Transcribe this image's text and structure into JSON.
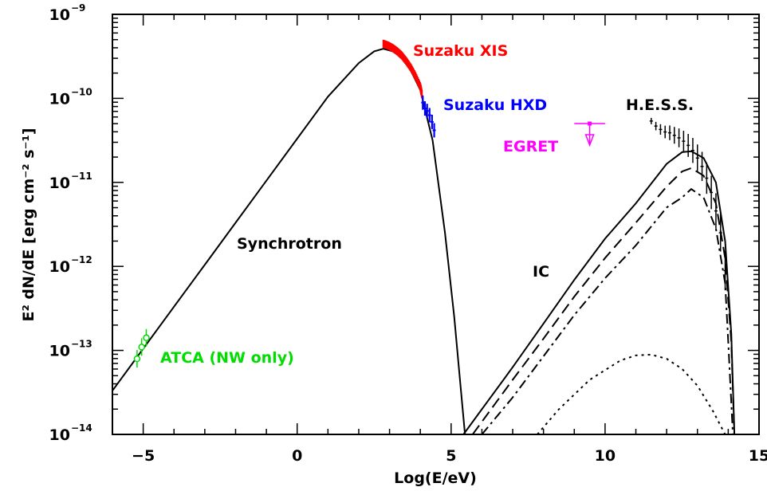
{
  "chart_data": {
    "type": "line",
    "xlabel": "Log(E/eV)",
    "ylabel": "E² dN/dE [erg cm⁻² s⁻¹]",
    "xlim": [
      -6,
      15
    ],
    "ylim_log10": [
      -14,
      -9
    ],
    "yscale": "log",
    "x_ticks": [
      "−5",
      "0",
      "5",
      "10",
      "15"
    ],
    "x_tick_values": [
      -5,
      0,
      5,
      10,
      15
    ],
    "y_ticks": [
      {
        "base": "10",
        "exp": "−9",
        "value": -9
      },
      {
        "base": "10",
        "exp": "−10",
        "value": -10
      },
      {
        "base": "10",
        "exp": "−11",
        "value": -11
      },
      {
        "base": "10",
        "exp": "−12",
        "value": -12
      },
      {
        "base": "10",
        "exp": "−13",
        "value": -13
      },
      {
        "base": "10",
        "exp": "−14",
        "value": -14
      }
    ],
    "annotations": {
      "synchrotron": "Synchrotron",
      "ic": "IC",
      "suzaku_xis": "Suzaku XIS",
      "suzaku_hxd": "Suzaku HXD",
      "hess": "H.E.S.S.",
      "egret": "EGRET",
      "atca": "ATCA (NW only)"
    },
    "colors": {
      "suzaku_xis": "#ff0000",
      "suzaku_hxd": "#0000ff",
      "egret": "#ff00ff",
      "atca": "#00ff00",
      "model": "#000000"
    },
    "series": [
      {
        "style": "solid",
        "x": [
          -6,
          -5,
          -4,
          -3,
          -2,
          -1,
          0,
          1,
          2,
          2.5,
          2.8,
          3.2,
          3.6,
          4.0,
          4.4,
          4.8,
          5.1,
          5.3,
          5.45
        ],
        "y_log10": [
          -13.48,
          -12.98,
          -12.48,
          -11.98,
          -11.48,
          -10.98,
          -10.48,
          -9.98,
          -9.58,
          -9.44,
          -9.41,
          -9.45,
          -9.6,
          -9.9,
          -10.5,
          -11.6,
          -12.6,
          -13.4,
          -14.0
        ]
      },
      {
        "style": "solid",
        "x": [
          5.4,
          6,
          7,
          8,
          9,
          10,
          11,
          12,
          12.5,
          12.8,
          13.2,
          13.6,
          13.9,
          14.1,
          14.2
        ],
        "y_log10": [
          -14.0,
          -13.7,
          -13.2,
          -12.68,
          -12.16,
          -11.67,
          -11.25,
          -10.78,
          -10.64,
          -10.63,
          -10.71,
          -11.0,
          -11.7,
          -12.8,
          -14.0
        ]
      },
      {
        "style": "dashed",
        "x": [
          5.7,
          7,
          8,
          9,
          10,
          11,
          12,
          12.5,
          12.8,
          13.2,
          13.6,
          13.9,
          14.1,
          14.2
        ],
        "y_log10": [
          -14.0,
          -13.35,
          -12.86,
          -12.36,
          -11.9,
          -11.48,
          -11.05,
          -10.87,
          -10.83,
          -10.92,
          -11.25,
          -11.9,
          -12.9,
          -14.0
        ]
      },
      {
        "style": "dash-dot",
        "x": [
          6.0,
          7,
          8,
          9,
          10,
          11,
          12,
          12.5,
          12.8,
          13.2,
          13.6,
          13.9,
          14.0,
          14.15
        ],
        "y_log10": [
          -14.0,
          -13.56,
          -13.07,
          -12.58,
          -12.14,
          -11.75,
          -11.3,
          -11.18,
          -11.08,
          -11.18,
          -11.55,
          -12.2,
          -12.9,
          -14.0
        ]
      },
      {
        "style": "dotted",
        "x": [
          7.8,
          8.5,
          9.5,
          10.5,
          11.0,
          11.5,
          12.0,
          12.5,
          13.0,
          13.5,
          13.9
        ],
        "y_log10": [
          -14.0,
          -13.7,
          -13.35,
          -13.12,
          -13.06,
          -13.05,
          -13.1,
          -13.22,
          -13.42,
          -13.72,
          -14.0
        ]
      }
    ],
    "data_points": {
      "suzaku_xis": {
        "x": [
          2.8,
          2.95,
          3.1,
          3.25,
          3.4,
          3.55,
          3.7,
          3.85,
          4.0,
          4.05
        ],
        "y_log10": [
          -9.35,
          -9.37,
          -9.4,
          -9.44,
          -9.49,
          -9.56,
          -9.64,
          -9.74,
          -9.86,
          -9.95
        ]
      },
      "suzaku_hxd": {
        "x": [
          4.08,
          4.15,
          4.22,
          4.3,
          4.38,
          4.45
        ],
        "y_log10": [
          -10.05,
          -10.12,
          -10.15,
          -10.2,
          -10.28,
          -10.38
        ]
      },
      "atca": {
        "x": [
          -5.2,
          -5.05,
          -4.9
        ],
        "y_log10": [
          -13.1,
          -12.96,
          -12.85
        ]
      },
      "egret_upper_limit": {
        "x": 9.5,
        "xmin": 9.0,
        "xmax": 10.0,
        "y_log10": -10.3
      },
      "hess": {
        "x": [
          11.5,
          11.65,
          11.8,
          11.95,
          12.1,
          12.25,
          12.4,
          12.55,
          12.7,
          12.85,
          13.0,
          13.15,
          13.3,
          13.45,
          13.6,
          13.75,
          13.9
        ],
        "y_log10": [
          -10.27,
          -10.33,
          -10.37,
          -10.4,
          -10.41,
          -10.44,
          -10.47,
          -10.51,
          -10.56,
          -10.62,
          -10.71,
          -10.81,
          -10.95,
          -11.12,
          -11.34,
          -11.6,
          -12.05
        ]
      }
    }
  }
}
